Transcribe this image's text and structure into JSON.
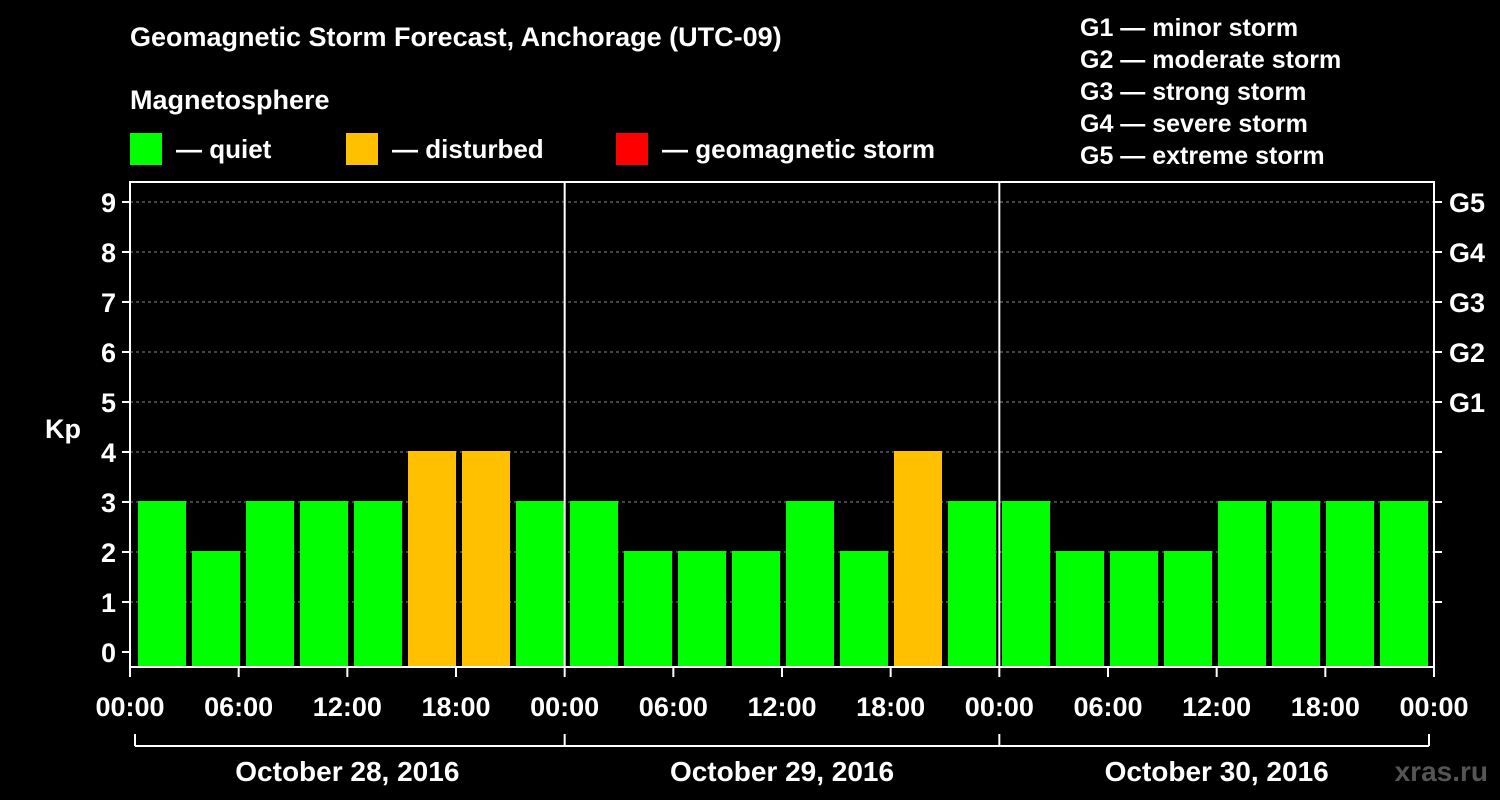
{
  "title": "Geomagnetic Storm Forecast, Anchorage (UTC-09)",
  "subtitle": "Magnetosphere",
  "legend": [
    {
      "label": "— quiet",
      "color": "#00ff00"
    },
    {
      "label": "— disturbed",
      "color": "#ffc000"
    },
    {
      "label": "— geomagnetic storm",
      "color": "#ff0000"
    }
  ],
  "g_legend": [
    "G1 — minor storm",
    "G2 — moderate storm",
    "G3 — strong storm",
    "G4 — severe storm",
    "G5 — extreme storm"
  ],
  "watermark": "xras.ru",
  "chart_data": {
    "type": "bar",
    "ylabel": "Kp",
    "ylim": [
      0,
      9
    ],
    "y_ticks": [
      0,
      1,
      2,
      3,
      4,
      5,
      6,
      7,
      8,
      9
    ],
    "right_ticks": [
      {
        "value": 5,
        "label": "G1"
      },
      {
        "value": 6,
        "label": "G2"
      },
      {
        "value": 7,
        "label": "G3"
      },
      {
        "value": 8,
        "label": "G4"
      },
      {
        "value": 9,
        "label": "G5"
      }
    ],
    "x_tick_labels": [
      "00:00",
      "06:00",
      "12:00",
      "18:00",
      "00:00",
      "06:00",
      "12:00",
      "18:00",
      "00:00",
      "06:00",
      "12:00",
      "18:00",
      "00:00"
    ],
    "days": [
      "October 28, 2016",
      "October 29, 2016",
      "October 30, 2016"
    ],
    "values": [
      3,
      2,
      3,
      3,
      3,
      4,
      4,
      3,
      3,
      2,
      2,
      2,
      3,
      2,
      4,
      3,
      3,
      2,
      2,
      2,
      3,
      3,
      3,
      3
    ],
    "colors": {
      "quiet": "#00ff00",
      "disturbed": "#ffc000",
      "storm": "#ff0000"
    },
    "thresholds": {
      "disturbed": 4,
      "storm": 5
    },
    "grid": true
  }
}
